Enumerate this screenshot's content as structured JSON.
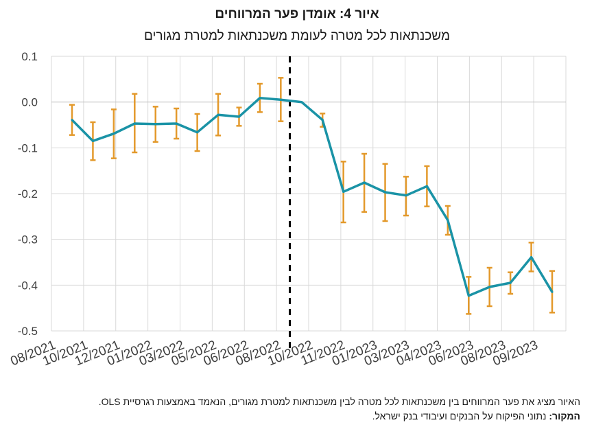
{
  "title": "איור 4: אומדן פער המרווחים",
  "subtitle": "משכנתאות לכל מטרה לעומת משכנתאות למטרת מגורים",
  "footnote": "האיור מציג את פער המרווחים בין משכנתאות לכל מטרה לבין משכנתאות למטרת מגורים, הנאמד באמצעות רגרסיית OLS.",
  "source_label": "המקור:",
  "source_text": "נתוני הפיקוח על הבנקים ועיבודי בנק ישראל.",
  "colors": {
    "line": "#1a93a6",
    "error_bars": "#e3992b",
    "grid": "#d9d9d9",
    "divider": "#000000"
  },
  "chart_data": {
    "type": "line",
    "ylim": [
      -0.5,
      0.1
    ],
    "yticks": [
      "0.1",
      "0.0",
      "-0.1",
      "-0.2",
      "-0.3",
      "-0.4",
      "-0.5"
    ],
    "yticks_values": [
      0.1,
      0.0,
      -0.1,
      -0.2,
      -0.3,
      -0.4,
      -0.5
    ],
    "grid": true,
    "x_tick_labels": [
      "08/2021",
      "10/2021",
      "12/2021",
      "01/2022",
      "03/2022",
      "05/2022",
      "06/2022",
      "08/2022",
      "10/2022",
      "11/2022",
      "01/2023",
      "03/2023",
      "04/2023",
      "06/2023",
      "08/2023",
      "09/2023"
    ],
    "series": [
      {
        "values": [
          -0.039,
          -0.085,
          -0.069,
          -0.047,
          -0.048,
          -0.047,
          -0.066,
          -0.028,
          -0.032,
          0.009,
          0.005,
          0.0,
          -0.039,
          -0.196,
          -0.176,
          -0.197,
          -0.204,
          -0.184,
          -0.258,
          -0.423,
          -0.404,
          -0.395,
          -0.339,
          -0.415
        ],
        "lower": [
          -0.072,
          -0.127,
          -0.123,
          -0.11,
          -0.087,
          -0.08,
          -0.107,
          -0.073,
          -0.052,
          -0.022,
          -0.042,
          null,
          -0.054,
          -0.263,
          -0.24,
          -0.26,
          -0.248,
          -0.228,
          -0.29,
          -0.463,
          -0.446,
          -0.419,
          -0.37,
          -0.46
        ],
        "upper": [
          -0.006,
          -0.044,
          -0.016,
          0.018,
          -0.01,
          -0.014,
          -0.026,
          0.018,
          -0.012,
          0.04,
          0.053,
          null,
          -0.025,
          -0.13,
          -0.113,
          -0.135,
          -0.163,
          -0.14,
          -0.227,
          -0.382,
          -0.362,
          -0.372,
          -0.307,
          -0.369
        ]
      }
    ],
    "vertical_divider_after_index": 10
  }
}
